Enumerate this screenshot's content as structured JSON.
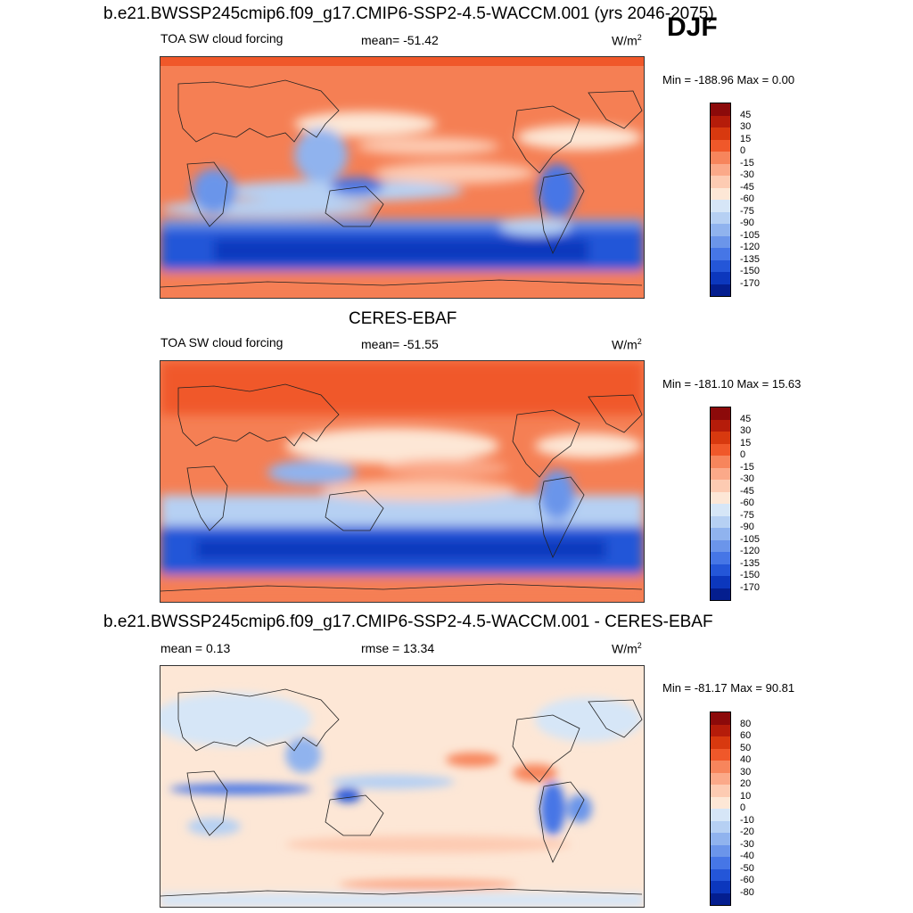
{
  "header": {
    "run_title": "b.e21.BWSSP245cmip6.f09_g17.CMIP6-SSP2-4.5-WACCM.001 (yrs 2046-2075)",
    "season": "DJF"
  },
  "panels": [
    {
      "id": "model",
      "heading": "",
      "variable": "TOA SW cloud forcing",
      "stat": "mean= -51.42",
      "units": "W/m",
      "units_sup": "2",
      "minmax": "Min = -188.96 Max =   0.00",
      "colorbar_labels": [
        "45",
        "30",
        "15",
        "0",
        "-15",
        "-30",
        "-45",
        "-60",
        "-75",
        "-90",
        "-105",
        "-120",
        "-135",
        "-150",
        "-170"
      ],
      "colorbar_colors": [
        "#8c0a0a",
        "#b51c0a",
        "#d8390f",
        "#f0582a",
        "#f7855c",
        "#fba989",
        "#fdcbb2",
        "#fde7d6",
        "#d6e6f7",
        "#b6d0f3",
        "#90b3ee",
        "#6b95ea",
        "#4676e6",
        "#2456d8",
        "#0c37bd",
        "#041e8f"
      ]
    },
    {
      "id": "obs",
      "heading": "CERES-EBAF",
      "variable": "TOA SW cloud forcing",
      "stat": "mean= -51.55",
      "units": "W/m",
      "units_sup": "2",
      "minmax": "Min = -181.10 Max =  15.63",
      "colorbar_labels": [
        "45",
        "30",
        "15",
        "0",
        "-15",
        "-30",
        "-45",
        "-60",
        "-75",
        "-90",
        "-105",
        "-120",
        "-135",
        "-150",
        "-170"
      ],
      "colorbar_colors": [
        "#8c0a0a",
        "#b51c0a",
        "#d8390f",
        "#f0582a",
        "#f7855c",
        "#fba989",
        "#fdcbb2",
        "#fde7d6",
        "#d6e6f7",
        "#b6d0f3",
        "#90b3ee",
        "#6b95ea",
        "#4676e6",
        "#2456d8",
        "#0c37bd",
        "#041e8f"
      ]
    },
    {
      "id": "diff",
      "heading": "b.e21.BWSSP245cmip6.f09_g17.CMIP6-SSP2-4.5-WACCM.001 - CERES-EBAF",
      "variable": "mean =   0.13",
      "stat": "rmse =  13.34",
      "units": "W/m",
      "units_sup": "2",
      "minmax": "Min = -81.17 Max =  90.81",
      "colorbar_labels": [
        "80",
        "60",
        "50",
        "40",
        "30",
        "20",
        "10",
        "0",
        "-10",
        "-20",
        "-30",
        "-40",
        "-50",
        "-60",
        "-80"
      ],
      "colorbar_colors": [
        "#8c0a0a",
        "#b51c0a",
        "#d8390f",
        "#f0582a",
        "#f7855c",
        "#fba989",
        "#fdcbb2",
        "#fde7d6",
        "#d6e6f7",
        "#b6d0f3",
        "#90b3ee",
        "#6b95ea",
        "#4676e6",
        "#2456d8",
        "#0c37bd",
        "#041e8f"
      ]
    }
  ]
}
